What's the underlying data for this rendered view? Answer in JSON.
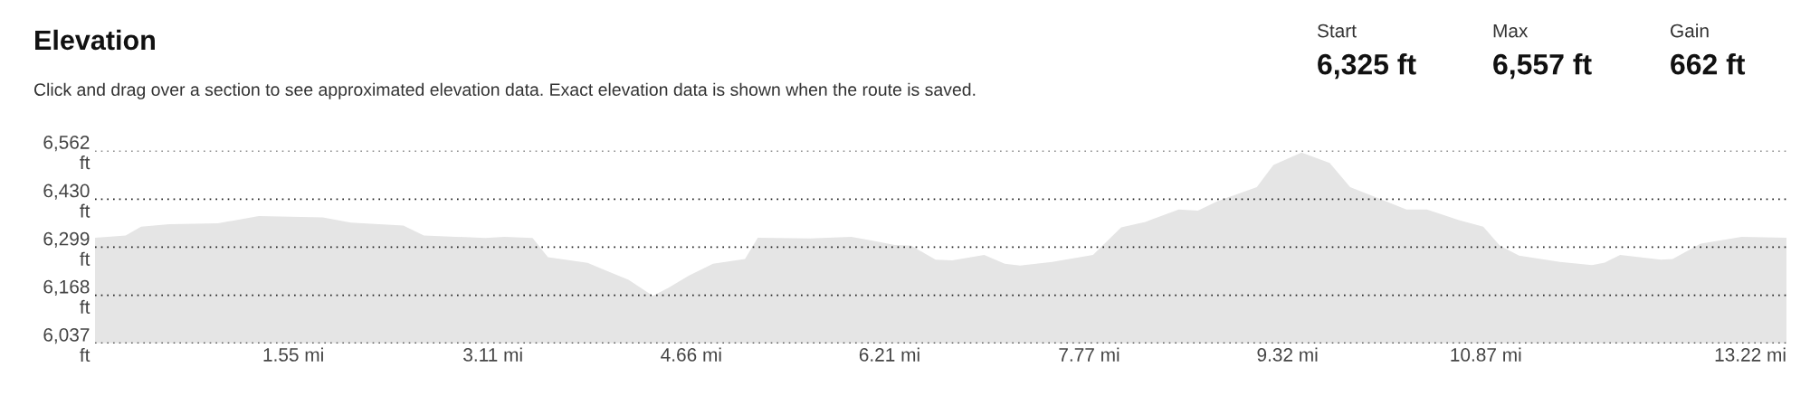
{
  "chart_data": {
    "type": "area",
    "title": "Elevation",
    "subtitle": "Click and drag over a section to see approximated elevation data. Exact elevation data is shown when the route is saved.",
    "annotations": [
      "Start",
      "6,325 ft",
      "Max",
      "6,557 ft",
      "Gain",
      "662 ft"
    ],
    "x": [
      0,
      0.24,
      0.36,
      0.58,
      0.96,
      1.28,
      1.78,
      2.0,
      2.41,
      2.57,
      3.05,
      3.2,
      3.42,
      3.54,
      3.85,
      3.98,
      4.17,
      4.36,
      4.48,
      4.64,
      4.83,
      5.08,
      5.18,
      5.59,
      5.91,
      6.06,
      6.25,
      6.38,
      6.57,
      6.7,
      6.95,
      7.11,
      7.23,
      7.48,
      7.8,
      8.02,
      8.21,
      8.47,
      8.62,
      8.77,
      9.08,
      9.21,
      9.43,
      9.65,
      9.81,
      10.09,
      10.25,
      10.41,
      10.66,
      10.85,
      10.98,
      11.13,
      11.45,
      11.7,
      11.8,
      11.92,
      12.24,
      12.33,
      12.55,
      12.87,
      13.22
    ],
    "series": [
      {
        "color": "#e5e5e5",
        "values": [
          6325,
          6331,
          6355,
          6362,
          6364,
          6384,
          6380,
          6366,
          6358,
          6331,
          6324,
          6327,
          6324,
          6272,
          6256,
          6237,
          6210,
          6166,
          6188,
          6221,
          6254,
          6267,
          6325,
          6323,
          6327,
          6318,
          6305,
          6303,
          6265,
          6263,
          6278,
          6254,
          6249,
          6259,
          6278,
          6353,
          6368,
          6402,
          6399,
          6424,
          6463,
          6523,
          6557,
          6529,
          6463,
          6424,
          6402,
          6402,
          6373,
          6355,
          6303,
          6276,
          6259,
          6250,
          6257,
          6278,
          6265,
          6267,
          6309,
          6327,
          6325
        ]
      }
    ],
    "xlim": [
      0,
      13.22
    ],
    "xticks": [
      {
        "value": 1.55,
        "label": "1.55 mi"
      },
      {
        "value": 3.11,
        "label": "3.11 mi"
      },
      {
        "value": 4.66,
        "label": "4.66 mi"
      },
      {
        "value": 6.21,
        "label": "6.21 mi"
      },
      {
        "value": 7.77,
        "label": "7.77 mi"
      },
      {
        "value": 9.32,
        "label": "9.32 mi"
      },
      {
        "value": 10.87,
        "label": "10.87 mi"
      },
      {
        "value": 13.22,
        "label": "13.22 mi"
      }
    ],
    "ylim": [
      6037,
      6562
    ],
    "yticks": [
      {
        "value": 6037,
        "label": "6,037\nft"
      },
      {
        "value": 6168,
        "label": "6,168\nft"
      },
      {
        "value": 6299,
        "label": "6,299\nft"
      },
      {
        "value": 6430,
        "label": "6,430\nft"
      },
      {
        "value": 6562,
        "label": "6,562\nft"
      }
    ],
    "grid": "y",
    "line_style": "dotted"
  }
}
